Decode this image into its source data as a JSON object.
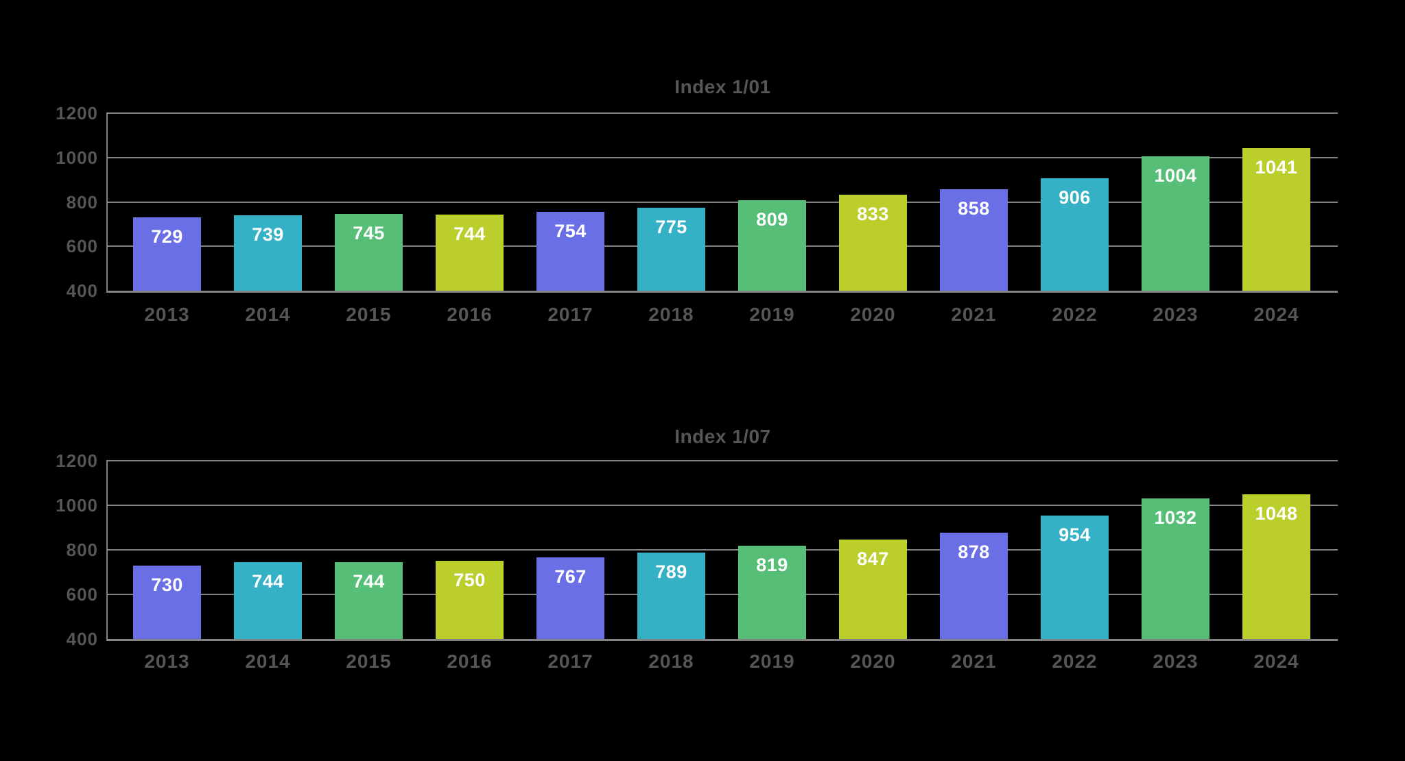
{
  "colors": {
    "background": "#000000",
    "axis_text": "#56565A",
    "grid": "#828282",
    "value_label": "#FFFFFF",
    "palette": [
      "#6B6FE6",
      "#35B1C6",
      "#57BE78",
      "#BCCE2B"
    ]
  },
  "chart_data": [
    {
      "type": "bar",
      "title": "Index 1/01",
      "categories": [
        "2013",
        "2014",
        "2015",
        "2016",
        "2017",
        "2018",
        "2019",
        "2020",
        "2021",
        "2022",
        "2023",
        "2024"
      ],
      "values": [
        729,
        739,
        745,
        744,
        754,
        775,
        809,
        833,
        858,
        906,
        1004,
        1041
      ],
      "ylim": [
        400,
        1200
      ],
      "yticks": [
        400,
        600,
        800,
        1000,
        1200
      ],
      "grid": true,
      "legend": "none",
      "value_labels": "inside-top",
      "color_cycle": "palette repeats every 4 bars"
    },
    {
      "type": "bar",
      "title": "Index 1/07",
      "categories": [
        "2013",
        "2014",
        "2015",
        "2016",
        "2017",
        "2018",
        "2019",
        "2020",
        "2021",
        "2022",
        "2023",
        "2024"
      ],
      "values": [
        730,
        744,
        744,
        750,
        767,
        789,
        819,
        847,
        878,
        954,
        1032,
        1048
      ],
      "ylim": [
        400,
        1200
      ],
      "yticks": [
        400,
        600,
        800,
        1000,
        1200
      ],
      "grid": true,
      "legend": "none",
      "value_labels": "inside-top",
      "color_cycle": "palette repeats every 4 bars"
    }
  ]
}
